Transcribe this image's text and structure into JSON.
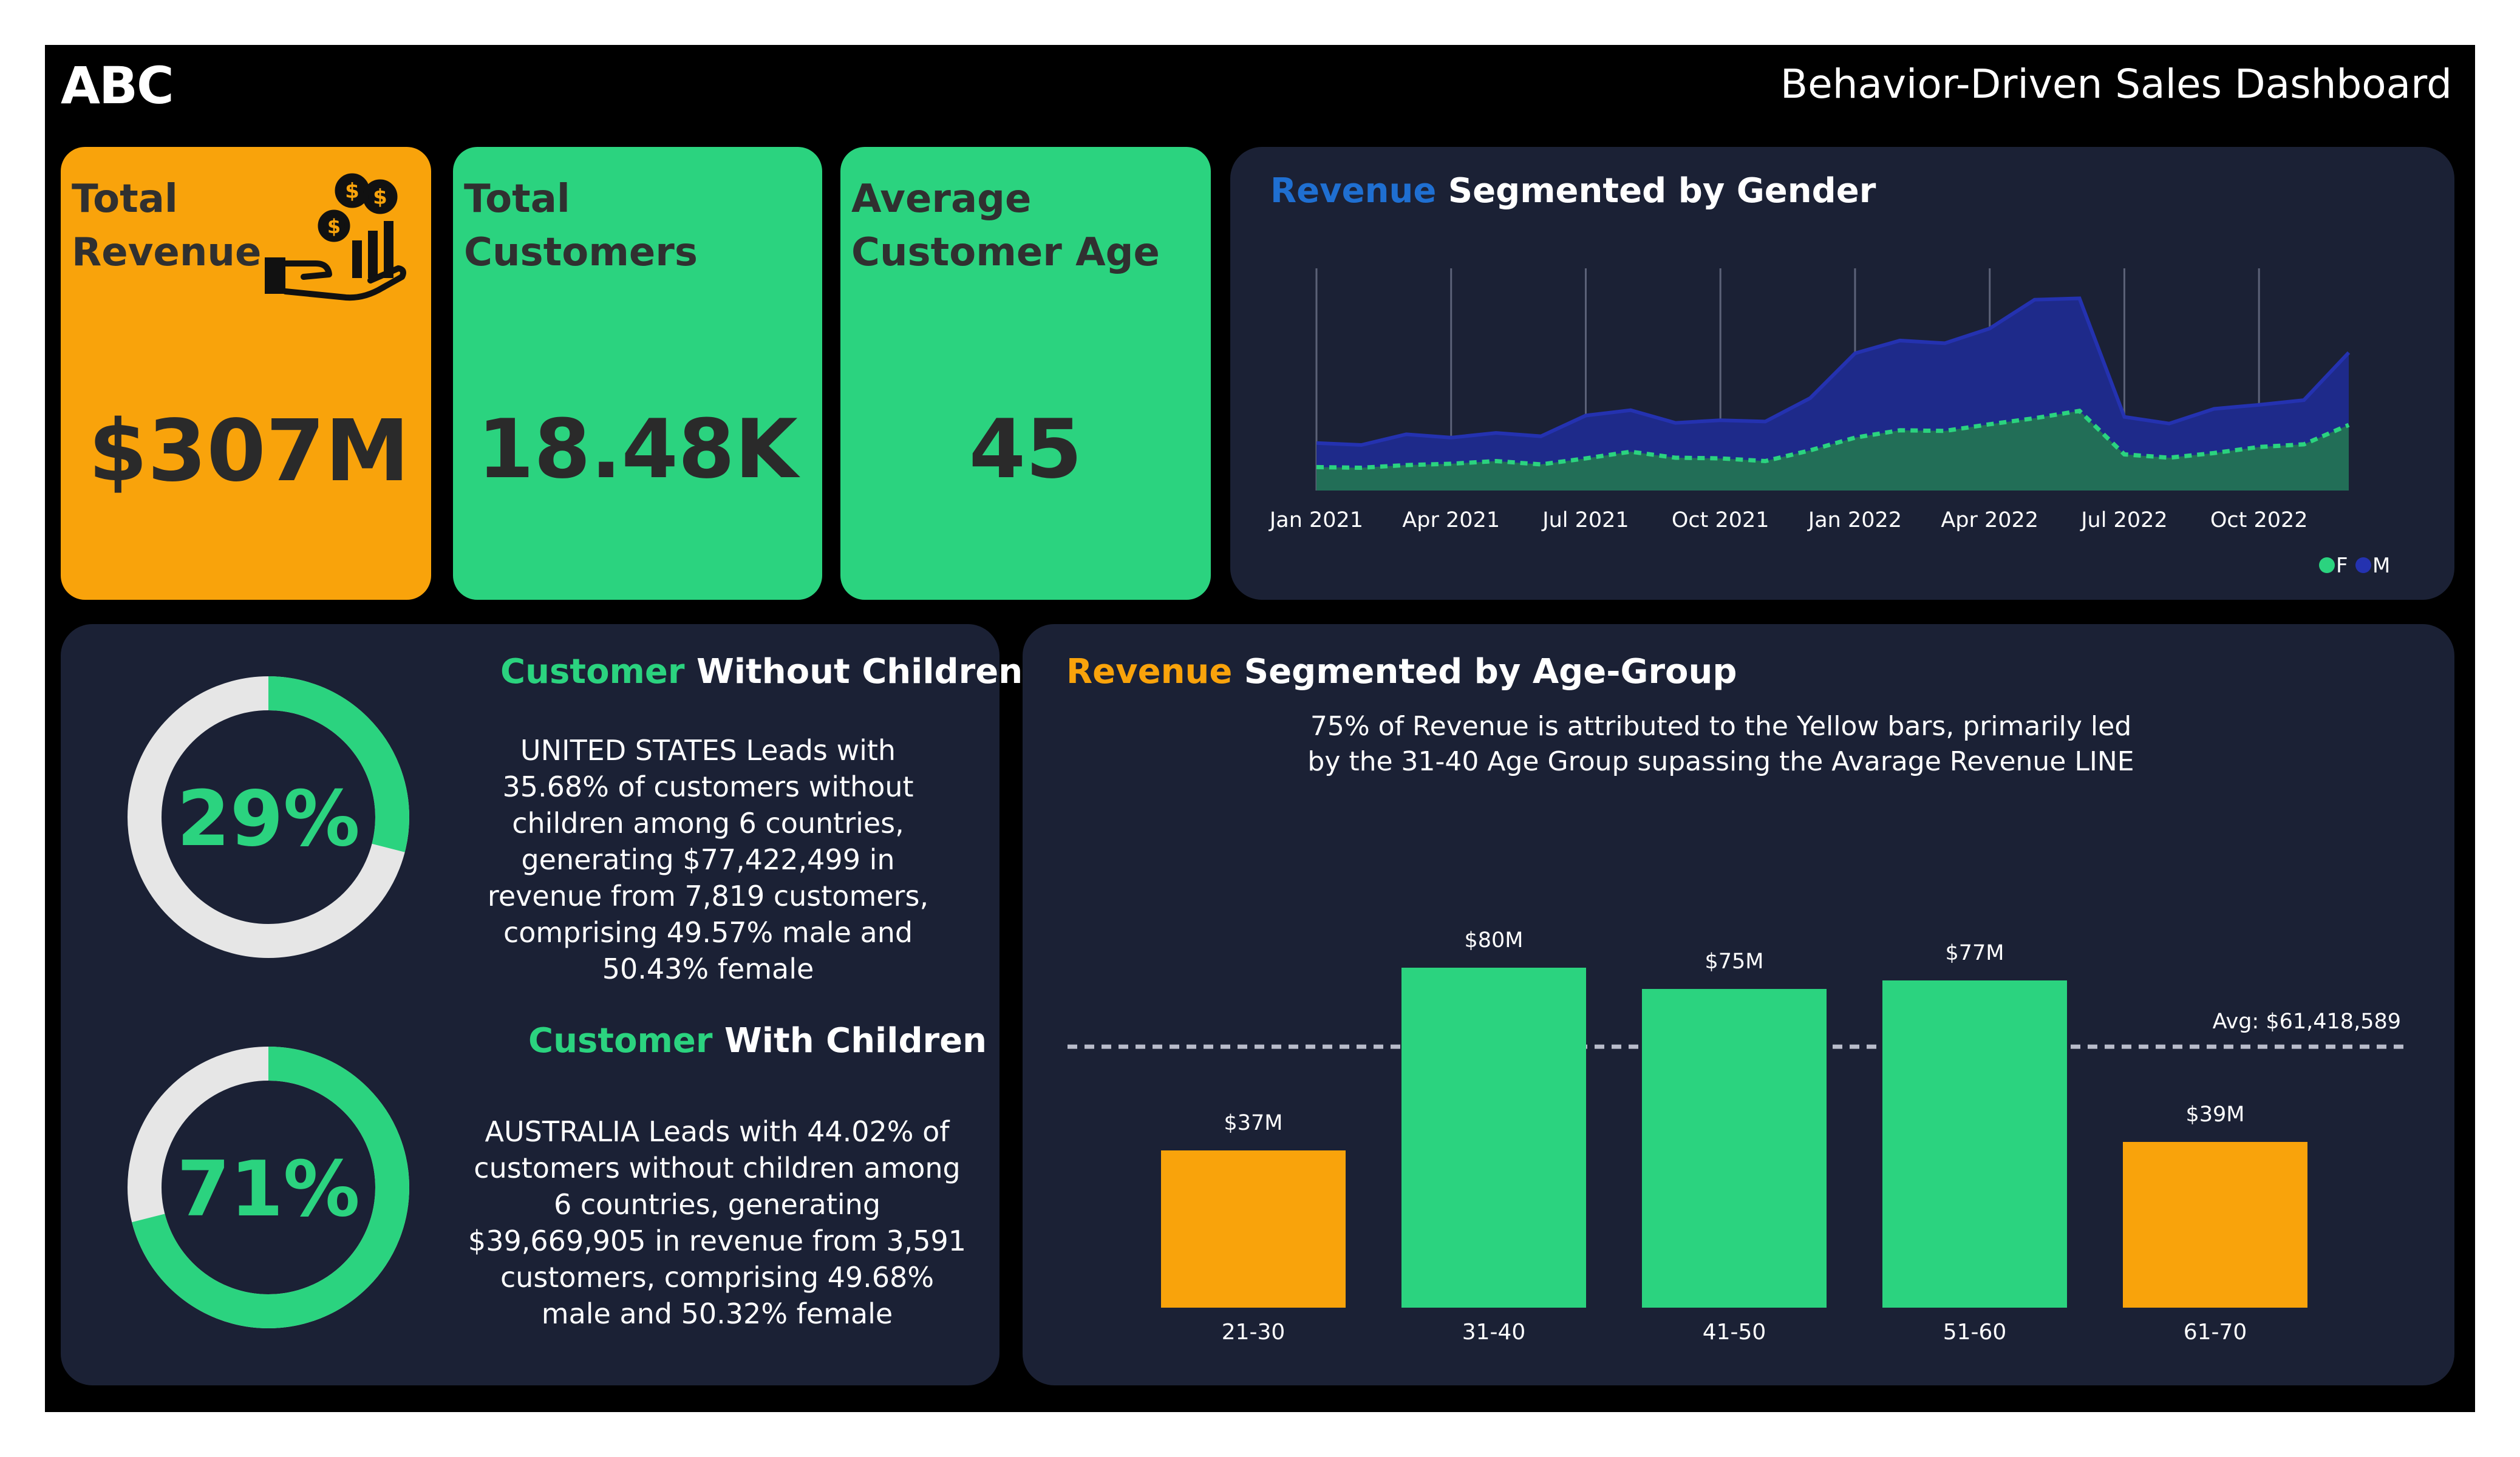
{
  "header": {
    "logo": "ABC",
    "title": "Behavior-Driven Sales Dashboard"
  },
  "kpis": {
    "revenue": {
      "label_line1": "Total",
      "label_line2": "Revenue",
      "value": "$307M",
      "icon": "money-hand-chart-icon"
    },
    "customers": {
      "label_line1": "Total",
      "label_line2": "Customers",
      "value": "18.48K"
    },
    "age": {
      "label_line1": "Average",
      "label_line2": "Customer Age",
      "value": "45"
    }
  },
  "gender_panel": {
    "title_accent": "Revenue",
    "title_rest": " Segmented by Gender"
  },
  "children_panel": {
    "without": {
      "title_accent": "Customer",
      "title_rest": " Without Children",
      "percent_label": "29%",
      "percent": 29,
      "description": "UNITED STATES Leads with 35.68% of customers without children among 6 countries, generating $77,422,499 in revenue from 7,819 customers, comprising 49.57% male and 50.43% female"
    },
    "with": {
      "title_accent": "Customer",
      "title_rest": " With Children",
      "percent_label": "71%",
      "percent": 71,
      "description": "AUSTRALIA Leads with 44.02% of customers without children among 6 countries, generating $39,669,905 in revenue from 3,591 customers, comprising 49.68% male and 50.32% female"
    }
  },
  "age_panel": {
    "title_accent": "Revenue",
    "title_rest": " Segmented by Age-Group",
    "subtitle_line1": "75% of Revenue is attributed to the Yellow bars, primarily led",
    "subtitle_line2": "by the 31-40 Age Group supassing the Avarage Revenue LINE"
  },
  "colors": {
    "orange": "#f9a30b",
    "green": "#2bd37f",
    "navy_area": "#1e2a8a",
    "green_area": "#226e57",
    "panel_bg": "#1b2135",
    "gender_title_accent": "#1f6fd1",
    "donut_track": "#e6e6e6"
  },
  "chart_data": [
    {
      "type": "area",
      "x_ticks": [
        "Jan 2021",
        "Apr 2021",
        "Jul 2021",
        "Oct 2021",
        "Jan 2022",
        "Apr 2022",
        "Jul 2022",
        "Oct 2022"
      ],
      "x": [
        "Jan 2021",
        "Feb 2021",
        "Mar 2021",
        "Apr 2021",
        "May 2021",
        "Jun 2021",
        "Jul 2021",
        "Aug 2021",
        "Sep 2021",
        "Oct 2021",
        "Nov 2021",
        "Dec 2021",
        "Jan 2022",
        "Feb 2022",
        "Mar 2022",
        "Apr 2022",
        "May 2022",
        "Jun 2022",
        "Jul 2022",
        "Aug 2022",
        "Sep 2022",
        "Oct 2022",
        "Nov 2022",
        "Dec 2022"
      ],
      "series": [
        {
          "name": "F",
          "color": "#2bd37f",
          "values": [
            3.5,
            3.4,
            3.8,
            4.0,
            4.4,
            3.9,
            4.8,
            5.8,
            4.9,
            4.8,
            4.4,
            6.0,
            7.9,
            9.0,
            8.9,
            9.9,
            10.8,
            11.9,
            5.4,
            4.9,
            5.6,
            6.5,
            6.9,
            9.8
          ]
        },
        {
          "name": "M",
          "color": "#1e2a8a",
          "values": [
            7.1,
            6.8,
            8.4,
            7.9,
            8.6,
            8.1,
            11.2,
            12.0,
            10.1,
            10.5,
            10.3,
            13.8,
            20.5,
            22.4,
            22.0,
            24.2,
            28.5,
            28.7,
            11.0,
            10.0,
            12.2,
            12.8,
            13.5,
            20.6
          ]
        }
      ],
      "legend": [
        "F",
        "M"
      ],
      "legend_position": "bottom-right",
      "ylim": [
        0,
        35
      ],
      "grid": "vertical"
    },
    {
      "type": "bar",
      "categories": [
        "21-30",
        "31-40",
        "41-50",
        "51-60",
        "61-70"
      ],
      "values": [
        37,
        80,
        75,
        77,
        39
      ],
      "value_labels": [
        "$37M",
        "$80M",
        "$75M",
        "$77M",
        "$39M"
      ],
      "bar_colors": [
        "#f9a30b",
        "#2bd37f",
        "#2bd37f",
        "#2bd37f",
        "#f9a30b"
      ],
      "average_line": 61.418589,
      "average_label": "Avg: $61,418,589",
      "ylim": [
        0,
        100
      ]
    },
    {
      "type": "pie",
      "name": "Customer Without Children",
      "values": [
        29,
        71
      ],
      "colors": [
        "#2bd37f",
        "#e6e6e6"
      ]
    },
    {
      "type": "pie",
      "name": "Customer With Children",
      "values": [
        71,
        29
      ],
      "colors": [
        "#2bd37f",
        "#e6e6e6"
      ]
    }
  ]
}
